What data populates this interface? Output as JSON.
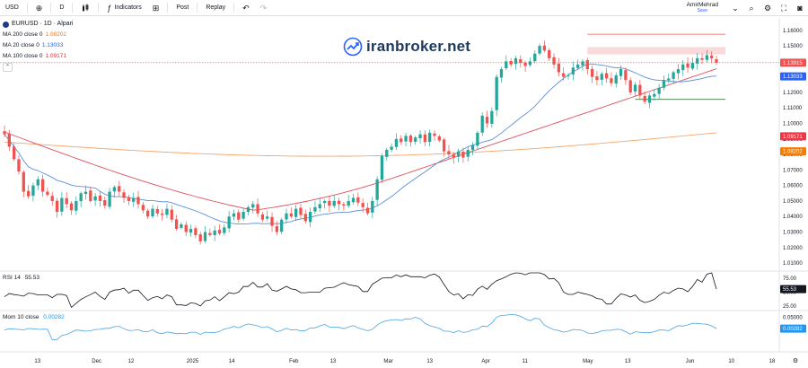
{
  "toolbar": {
    "symbol": "USD",
    "interval": "D",
    "indicators_label": "Indicators",
    "post_label": "Post",
    "replay_label": "Replay",
    "user_name": "AmirMehrad",
    "user_status": "Save"
  },
  "legend": {
    "title": "EURUSD · 1D · Alpari",
    "ma200_label": "MA 200 close 0",
    "ma200_value": "1.08202",
    "ma20_label": "MA 20 close 0",
    "ma20_value": "1.13033",
    "ma100_label": "MA 100 close 0",
    "ma100_value": "1.09171"
  },
  "watermark": "iranbroker.net",
  "rsi": {
    "label": "RSI 14",
    "value": "55.53"
  },
  "mom": {
    "label": "Mom 10 close",
    "value": "0.00282"
  },
  "colors": {
    "up": "#26a69a",
    "down": "#ef5350",
    "ma20": "#5b8fd6",
    "ma100": "#e0505a",
    "ma200": "#f2a66e",
    "rsi": "#131722",
    "mom": "#4aa3df",
    "price_line": "#ef5350"
  },
  "chart_data": [
    {
      "type": "candlestick",
      "title": "EURUSD · 1D · Alpari",
      "price_axis": {
        "ticks": [
          "1.16000",
          "1.15000",
          "1.14000",
          "1.13000",
          "1.12000",
          "1.11000",
          "1.10000",
          "1.09000",
          "1.08000",
          "1.07000",
          "1.06000",
          "1.05000",
          "1.04000",
          "1.03000",
          "1.02000",
          "1.01000"
        ],
        "ylim": [
          1.006,
          1.168
        ]
      },
      "time_axis": {
        "ticks": [
          "13",
          "Dec",
          "12",
          "2025",
          "14",
          "Feb",
          "13",
          "Mar",
          "13",
          "Apr",
          "11",
          "May",
          "13",
          "Jun",
          "10",
          "18"
        ]
      },
      "markers": {
        "last_price": "1.13915",
        "ma20": "1.13033",
        "ma100": "1.09171",
        "ma200": "1.08202"
      },
      "levels": {
        "resistance_high": 1.1575,
        "resistance_zone": [
          1.1445,
          1.1492
        ],
        "support": 1.1155
      },
      "close": [
        1.093,
        1.085,
        1.077,
        1.069,
        1.056,
        1.053,
        1.06,
        1.064,
        1.056,
        1.054,
        1.05,
        1.043,
        1.052,
        1.048,
        1.044,
        1.05,
        1.055,
        1.056,
        1.05,
        1.053,
        1.05,
        1.047,
        1.056,
        1.059,
        1.056,
        1.052,
        1.05,
        1.052,
        1.048,
        1.044,
        1.04,
        1.045,
        1.042,
        1.041,
        1.045,
        1.038,
        1.032,
        1.035,
        1.03,
        1.032,
        1.028,
        1.024,
        1.03,
        1.028,
        1.031,
        1.029,
        1.033,
        1.04,
        1.042,
        1.038,
        1.043,
        1.046,
        1.048,
        1.042,
        1.038,
        1.04,
        1.034,
        1.03,
        1.038,
        1.042,
        1.04,
        1.045,
        1.041,
        1.037,
        1.043,
        1.046,
        1.048,
        1.05,
        1.047,
        1.05,
        1.048,
        1.047,
        1.05,
        1.052,
        1.049,
        1.046,
        1.042,
        1.05,
        1.064,
        1.079,
        1.083,
        1.085,
        1.09,
        1.088,
        1.092,
        1.088,
        1.091,
        1.093,
        1.088,
        1.094,
        1.092,
        1.089,
        1.082,
        1.08,
        1.078,
        1.082,
        1.078,
        1.083,
        1.086,
        1.094,
        1.105,
        1.1,
        1.108,
        1.13,
        1.135,
        1.14,
        1.138,
        1.142,
        1.139,
        1.137,
        1.14,
        1.145,
        1.15,
        1.147,
        1.142,
        1.138,
        1.133,
        1.13,
        1.131,
        1.136,
        1.138,
        1.14,
        1.135,
        1.13,
        1.128,
        1.132,
        1.129,
        1.126,
        1.131,
        1.135,
        1.128,
        1.12,
        1.125,
        1.118,
        1.114,
        1.118,
        1.119,
        1.123,
        1.128,
        1.129,
        1.133,
        1.135,
        1.138,
        1.136,
        1.139,
        1.142,
        1.141,
        1.144,
        1.142,
        1.1392
      ]
    },
    {
      "type": "line",
      "title": "RSI 14",
      "ticks": [
        "75.00",
        "50.00",
        "25.00"
      ],
      "ylim": [
        20,
        85
      ],
      "last_value": "55.53"
    },
    {
      "type": "line",
      "title": "Mom 10 close",
      "ticks": [
        "0.05000",
        "0.00282"
      ],
      "ylim": [
        -0.085,
        0.062
      ],
      "last_value": "0.00282"
    }
  ]
}
